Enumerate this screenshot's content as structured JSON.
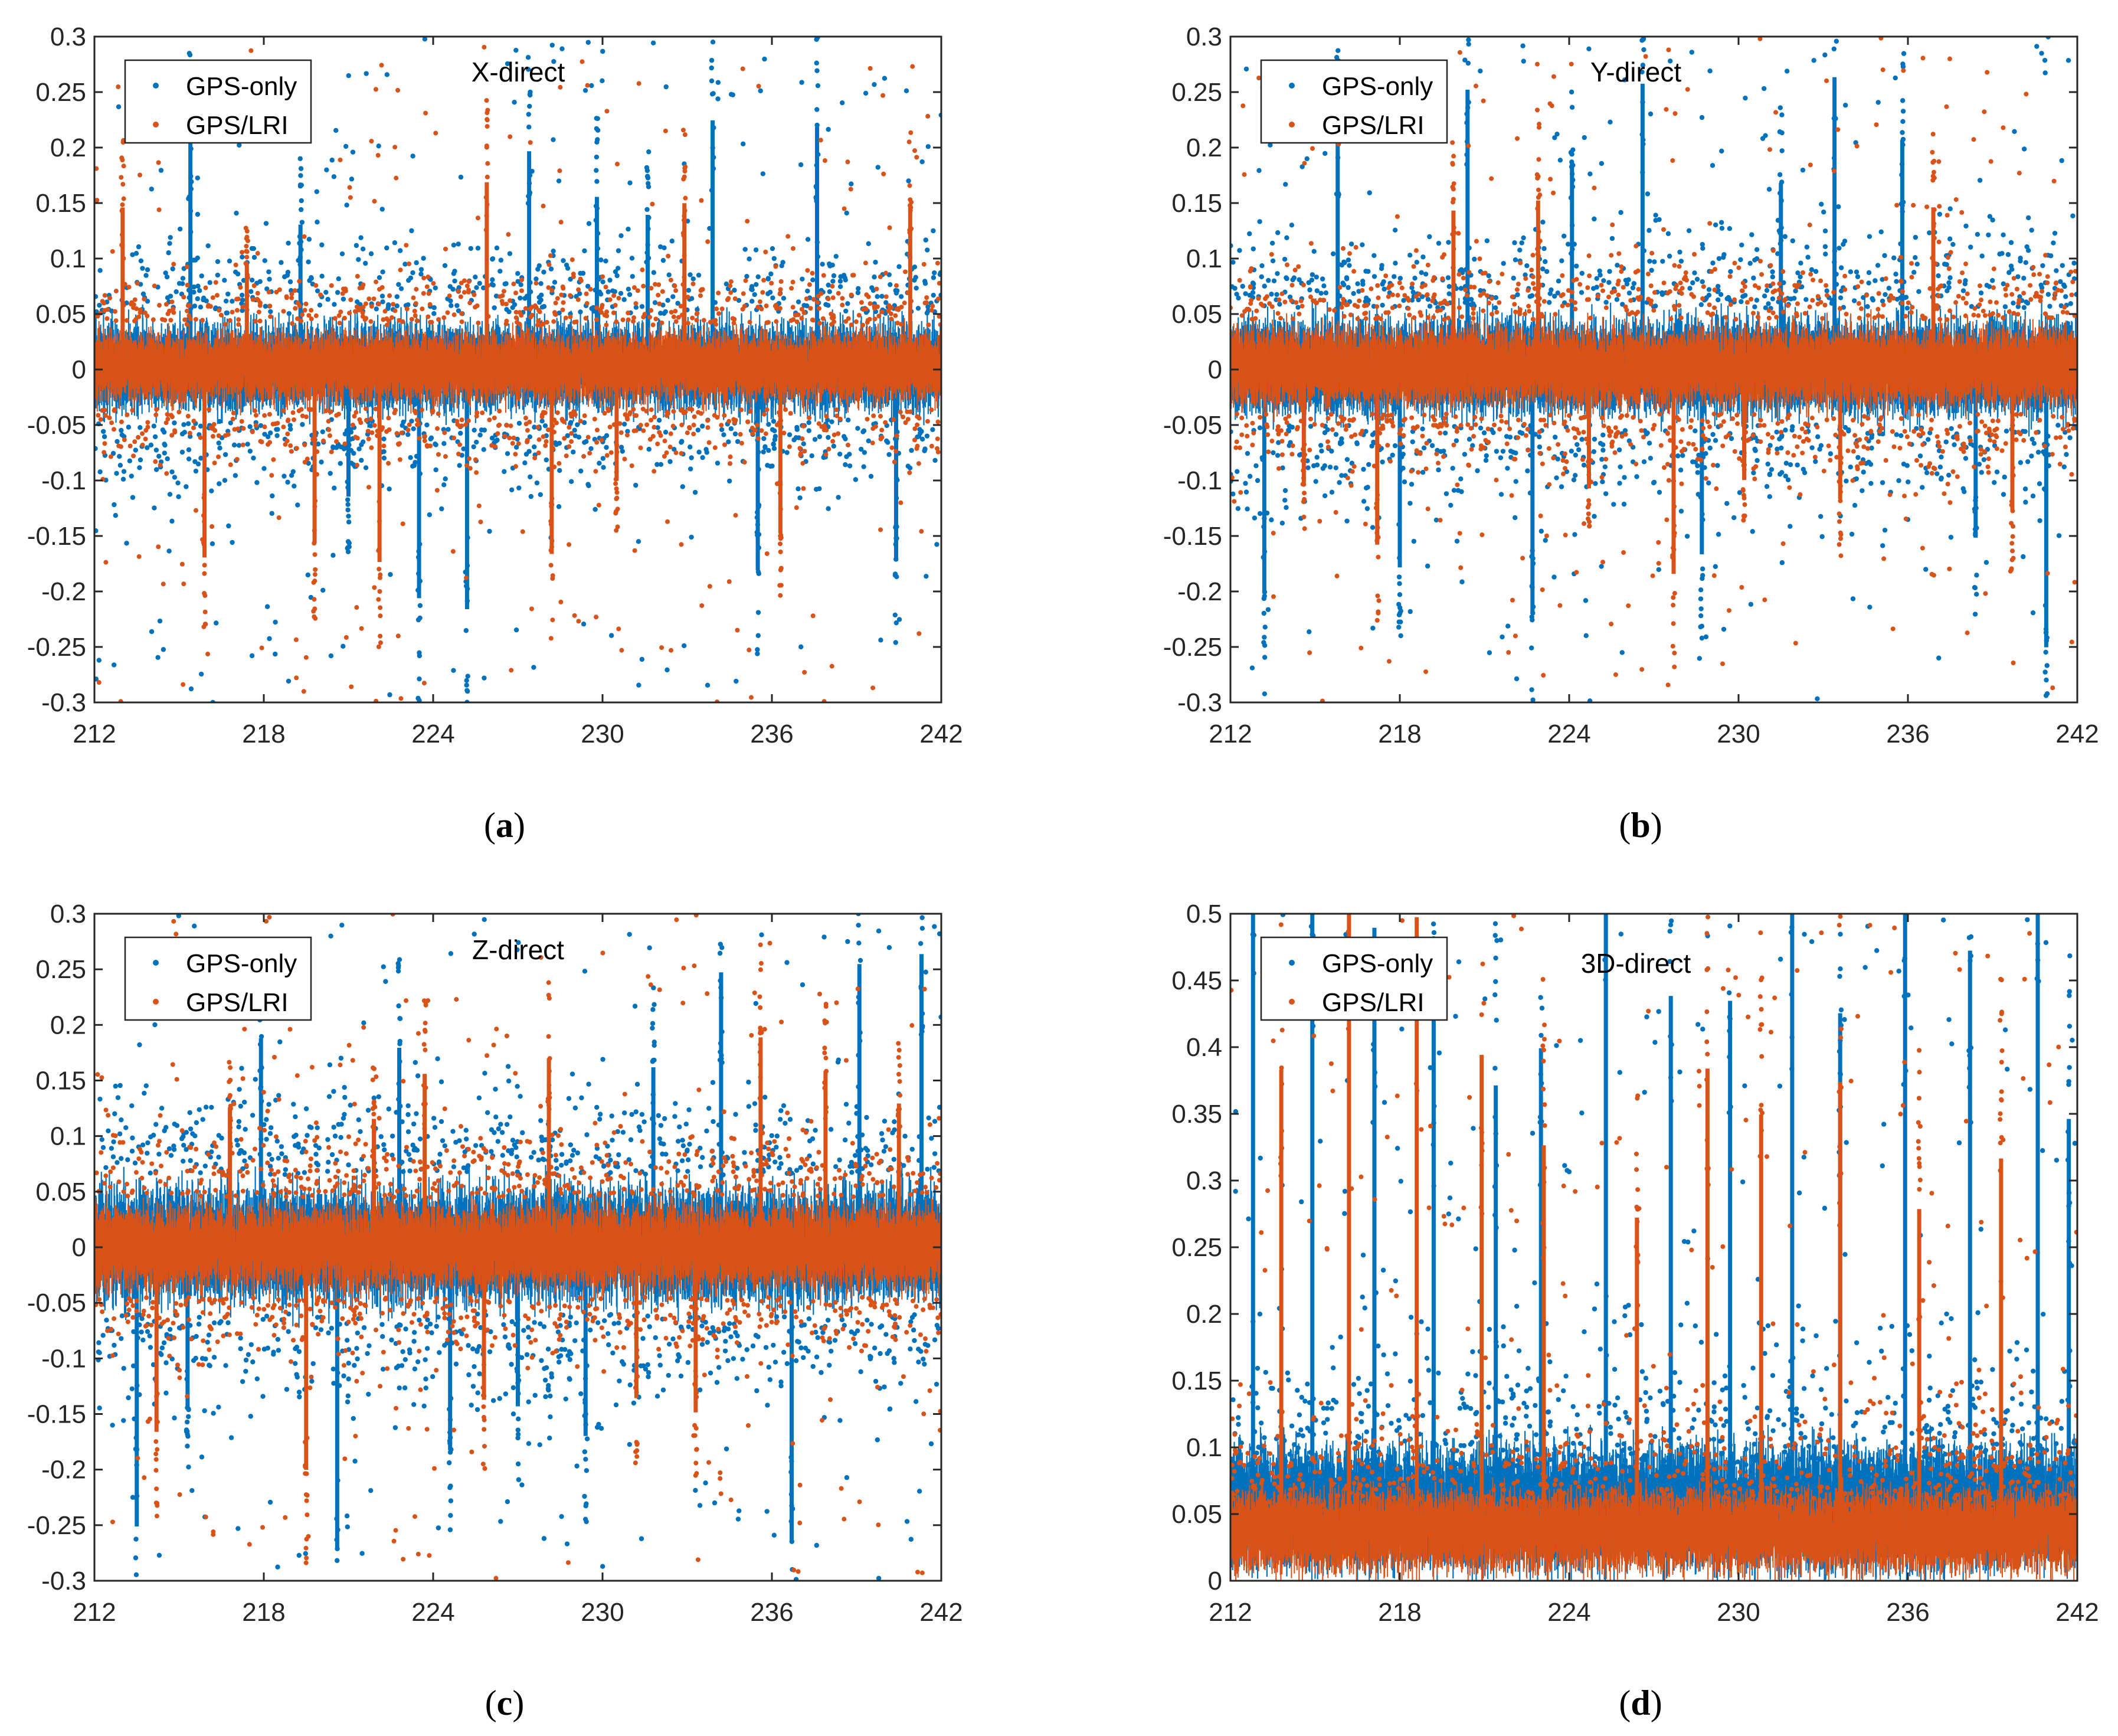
{
  "chart_data": [
    {
      "type": "scatter",
      "panel_label": "a",
      "title": "X-direct",
      "xlabel": "",
      "ylabel": "",
      "xlim": [
        212,
        242
      ],
      "ylim": [
        -0.3,
        0.3
      ],
      "x_ticks": [
        "212",
        "218",
        "224",
        "230",
        "236",
        "242"
      ],
      "y_ticks": [
        "-0.3",
        "-0.25",
        "-0.2",
        "-0.15",
        "-0.1",
        "-0.05",
        "0",
        "0.05",
        "0.1",
        "0.15",
        "0.2",
        "0.25",
        "0.3"
      ],
      "legend_position": "top-left",
      "series": [
        {
          "name": "GPS-only",
          "color": "#0072BD",
          "core_band": [
            -0.045,
            0.05
          ],
          "typical_spike": 0.12,
          "spike_x": [
            215.4,
            219.3,
            221.0,
            223.5,
            225.2,
            227.4,
            229.8,
            231.6,
            233.9,
            235.5,
            237.6,
            240.4
          ]
        },
        {
          "name": "GPS/LRI",
          "color": "#D95319",
          "core_band": [
            -0.035,
            0.04
          ],
          "typical_spike": 0.09,
          "spike_x": [
            213.0,
            215.9,
            217.4,
            219.8,
            222.1,
            225.9,
            228.2,
            230.5,
            232.9,
            236.3,
            240.9
          ]
        }
      ]
    },
    {
      "type": "scatter",
      "panel_label": "b",
      "title": "Y-direct",
      "xlabel": "",
      "ylabel": "",
      "xlim": [
        212,
        242
      ],
      "ylim": [
        -0.3,
        0.3
      ],
      "x_ticks": [
        "212",
        "218",
        "224",
        "230",
        "236",
        "242"
      ],
      "y_ticks": [
        "-0.3",
        "-0.25",
        "-0.2",
        "-0.15",
        "-0.1",
        "-0.05",
        "0",
        "0.05",
        "0.1",
        "0.15",
        "0.2",
        "0.25",
        "0.3"
      ],
      "legend_position": "top-left",
      "series": [
        {
          "name": "GPS-only",
          "color": "#0072BD",
          "core_band": [
            -0.05,
            0.055
          ],
          "typical_spike": 0.13,
          "spike_x": [
            213.2,
            215.8,
            218.0,
            220.4,
            222.7,
            224.1,
            226.6,
            228.7,
            231.5,
            233.4,
            235.8,
            238.4,
            240.9
          ]
        },
        {
          "name": "GPS/LRI",
          "color": "#D95319",
          "core_band": [
            -0.04,
            0.045
          ],
          "typical_spike": 0.1,
          "spike_x": [
            214.6,
            217.2,
            219.9,
            222.9,
            224.7,
            227.7,
            230.2,
            233.6,
            236.9,
            239.7
          ]
        }
      ]
    },
    {
      "type": "scatter",
      "panel_label": "c",
      "title": "Z-direct",
      "xlabel": "",
      "ylabel": "",
      "xlim": [
        212,
        242
      ],
      "ylim": [
        -0.3,
        0.3
      ],
      "x_ticks": [
        "212",
        "218",
        "224",
        "230",
        "236",
        "242"
      ],
      "y_ticks": [
        "-0.3",
        "-0.25",
        "-0.2",
        "-0.15",
        "-0.1",
        "-0.05",
        "0",
        "0.05",
        "0.1",
        "0.15",
        "0.2",
        "0.25",
        "0.3"
      ],
      "legend_position": "top-left",
      "series": [
        {
          "name": "GPS-only",
          "color": "#0072BD",
          "core_band": [
            -0.06,
            0.065
          ],
          "typical_spike": 0.14,
          "spike_x": [
            213.5,
            215.3,
            217.9,
            220.6,
            222.8,
            224.6,
            227.0,
            229.4,
            231.8,
            234.2,
            236.7,
            239.1,
            241.3
          ]
        },
        {
          "name": "GPS/LRI",
          "color": "#D95319",
          "core_band": [
            -0.045,
            0.045
          ],
          "typical_spike": 0.1,
          "spike_x": [
            214.2,
            216.8,
            219.5,
            221.9,
            223.7,
            225.8,
            228.1,
            231.2,
            233.3,
            235.6,
            237.9,
            240.5
          ]
        }
      ]
    },
    {
      "type": "scatter",
      "panel_label": "d",
      "title": "3D-direct",
      "xlabel": "",
      "ylabel": "",
      "xlim": [
        212,
        242
      ],
      "ylim": [
        0,
        0.5
      ],
      "x_ticks": [
        "212",
        "218",
        "224",
        "230",
        "236",
        "242"
      ],
      "y_ticks": [
        "0",
        "0.05",
        "0.1",
        "0.15",
        "0.2",
        "0.25",
        "0.3",
        "0.35",
        "0.4",
        "0.45",
        "0.5"
      ],
      "legend_position": "top-left",
      "series": [
        {
          "name": "GPS-only",
          "color": "#0072BD",
          "core_band": [
            0.0,
            0.11
          ],
          "typical_spike": 0.2,
          "spike_x": [
            212.8,
            214.9,
            217.1,
            219.2,
            221.4,
            223.0,
            225.3,
            227.6,
            229.7,
            231.9,
            233.6,
            235.9,
            238.2,
            240.6,
            241.7
          ]
        },
        {
          "name": "GPS/LRI",
          "color": "#D95319",
          "core_band": [
            0.0,
            0.075
          ],
          "typical_spike": 0.16,
          "spike_x": [
            213.8,
            216.2,
            218.6,
            220.9,
            223.1,
            226.4,
            228.9,
            230.8,
            233.6,
            236.4,
            239.3
          ]
        }
      ]
    }
  ]
}
